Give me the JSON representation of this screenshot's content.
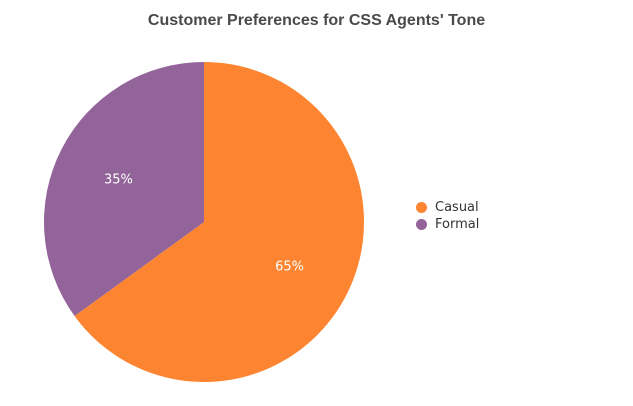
{
  "chart_data": {
    "type": "pie",
    "title": "Customer Preferences for CSS Agents' Tone",
    "categories": [
      "Casual",
      "Formal"
    ],
    "values": [
      65,
      35
    ],
    "labels": [
      "65%",
      "35%"
    ],
    "colors": [
      "#fd8531",
      "#93649a"
    ],
    "legend_position": "right"
  },
  "legend": {
    "items": [
      {
        "label": "Casual",
        "color": "#fd8531"
      },
      {
        "label": "Formal",
        "color": "#93649a"
      }
    ]
  }
}
